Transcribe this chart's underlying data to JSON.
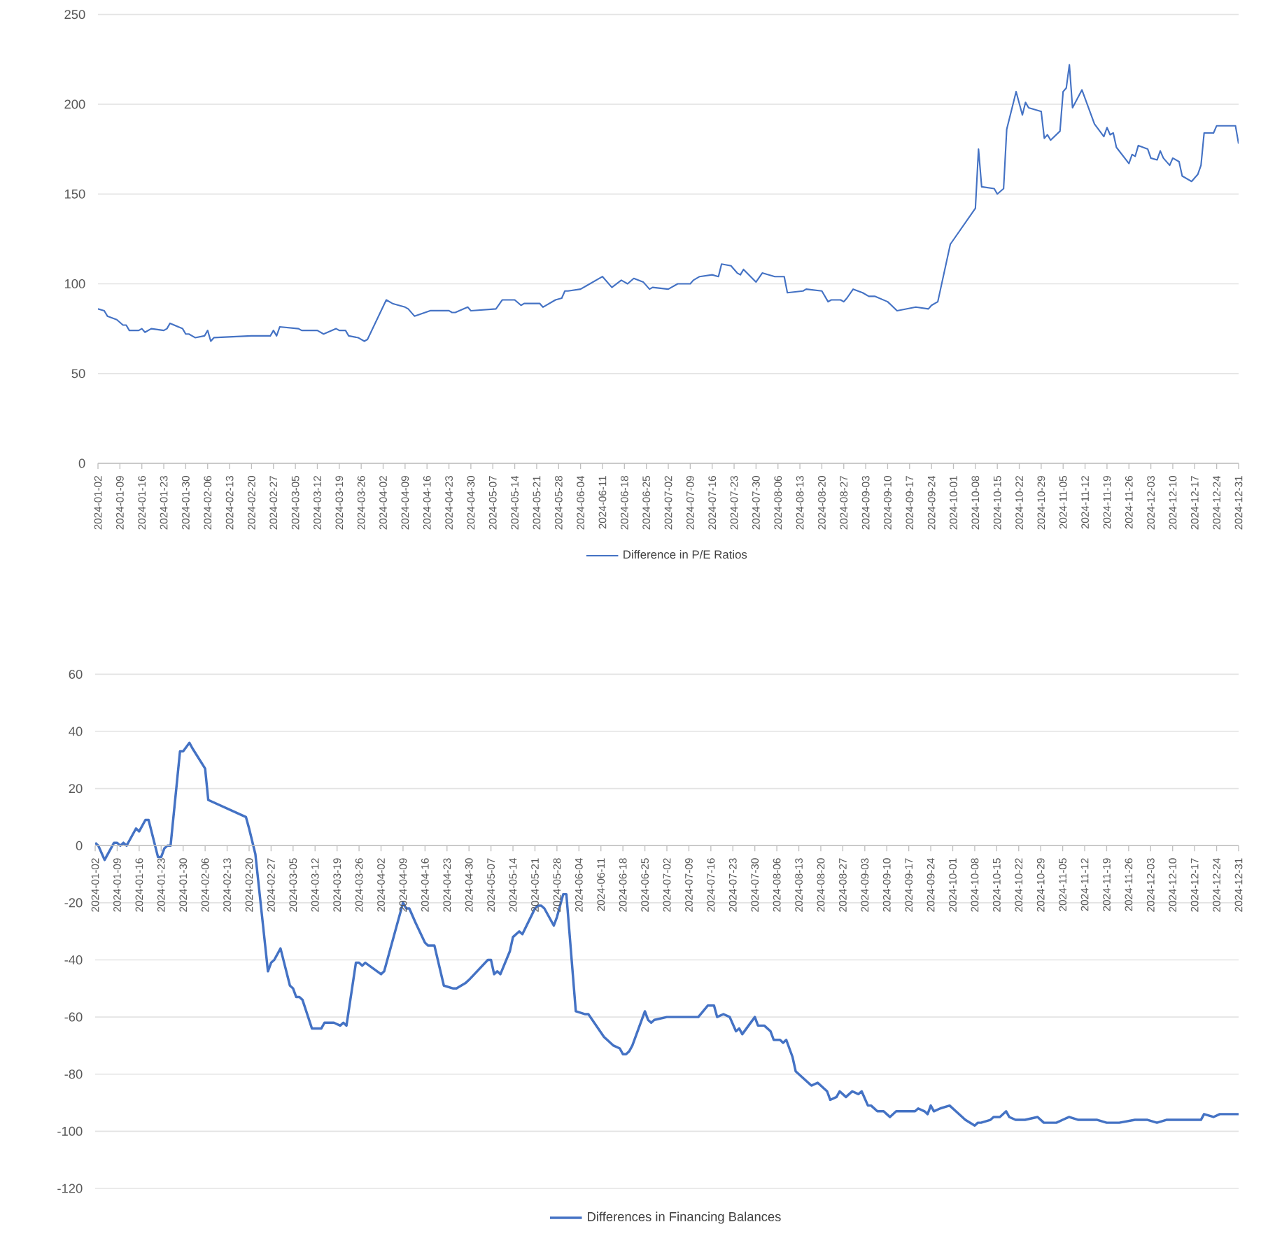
{
  "chart_data": [
    {
      "type": "line",
      "xlim": [
        "2024-01-02",
        "2024-12-31"
      ],
      "ylim": [
        0,
        250
      ],
      "yticks": [
        0,
        50,
        100,
        150,
        200,
        250
      ],
      "grid": "y",
      "legend": "bottom",
      "xticks": [
        "2024-01-02",
        "2024-01-09",
        "2024-01-16",
        "2024-01-23",
        "2024-01-30",
        "2024-02-06",
        "2024-02-13",
        "2024-02-20",
        "2024-02-27",
        "2024-03-05",
        "2024-03-12",
        "2024-03-19",
        "2024-03-26",
        "2024-04-02",
        "2024-04-09",
        "2024-04-16",
        "2024-04-23",
        "2024-04-30",
        "2024-05-07",
        "2024-05-14",
        "2024-05-21",
        "2024-05-28",
        "2024-06-04",
        "2024-06-11",
        "2024-06-18",
        "2024-06-25",
        "2024-07-02",
        "2024-07-09",
        "2024-07-16",
        "2024-07-23",
        "2024-07-30",
        "2024-08-06",
        "2024-08-13",
        "2024-08-20",
        "2024-08-27",
        "2024-09-03",
        "2024-09-10",
        "2024-09-17",
        "2024-09-24",
        "2024-10-01",
        "2024-10-08",
        "2024-10-15",
        "2024-10-22",
        "2024-10-29",
        "2024-11-05",
        "2024-11-12",
        "2024-11-19",
        "2024-11-26",
        "2024-12-03",
        "2024-12-10",
        "2024-12-17",
        "2024-12-24",
        "2024-12-31"
      ],
      "x": [
        "2024-01-02",
        "2024-01-04",
        "2024-01-05",
        "2024-01-08",
        "2024-01-10",
        "2024-01-11",
        "2024-01-12",
        "2024-01-15",
        "2024-01-16",
        "2024-01-17",
        "2024-01-19",
        "2024-01-23",
        "2024-01-24",
        "2024-01-25",
        "2024-01-29",
        "2024-01-30",
        "2024-01-31",
        "2024-02-02",
        "2024-02-05",
        "2024-02-06",
        "2024-02-07",
        "2024-02-08",
        "2024-02-20",
        "2024-02-26",
        "2024-02-27",
        "2024-02-28",
        "2024-02-29",
        "2024-03-06",
        "2024-03-07",
        "2024-03-12",
        "2024-03-14",
        "2024-03-18",
        "2024-03-19",
        "2024-03-21",
        "2024-03-22",
        "2024-03-25",
        "2024-03-27",
        "2024-03-28",
        "2024-04-03",
        "2024-04-05",
        "2024-04-09",
        "2024-04-10",
        "2024-04-12",
        "2024-04-17",
        "2024-04-18",
        "2024-04-23",
        "2024-04-24",
        "2024-04-25",
        "2024-04-29",
        "2024-04-30",
        "2024-05-08",
        "2024-05-10",
        "2024-05-14",
        "2024-05-16",
        "2024-05-17",
        "2024-05-22",
        "2024-05-23",
        "2024-05-27",
        "2024-05-29",
        "2024-05-30",
        "2024-05-31",
        "2024-06-04",
        "2024-06-06",
        "2024-06-11",
        "2024-06-14",
        "2024-06-17",
        "2024-06-18",
        "2024-06-19",
        "2024-06-21",
        "2024-06-24",
        "2024-06-26",
        "2024-06-27",
        "2024-07-02",
        "2024-07-05",
        "2024-07-09",
        "2024-07-10",
        "2024-07-12",
        "2024-07-16",
        "2024-07-18",
        "2024-07-19",
        "2024-07-22",
        "2024-07-24",
        "2024-07-25",
        "2024-07-26",
        "2024-07-30",
        "2024-08-01",
        "2024-08-05",
        "2024-08-08",
        "2024-08-09",
        "2024-08-14",
        "2024-08-15",
        "2024-08-20",
        "2024-08-22",
        "2024-08-23",
        "2024-08-26",
        "2024-08-27",
        "2024-08-28",
        "2024-08-30",
        "2024-09-02",
        "2024-09-04",
        "2024-09-06",
        "2024-09-10",
        "2024-09-13",
        "2024-09-19",
        "2024-09-23",
        "2024-09-24",
        "2024-09-26",
        "2024-09-30",
        "2024-10-08",
        "2024-10-09",
        "2024-10-10",
        "2024-10-14",
        "2024-10-15",
        "2024-10-17",
        "2024-10-18",
        "2024-10-21",
        "2024-10-23",
        "2024-10-24",
        "2024-10-25",
        "2024-10-29",
        "2024-10-30",
        "2024-10-31",
        "2024-11-01",
        "2024-11-04",
        "2024-11-05",
        "2024-11-06",
        "2024-11-07",
        "2024-11-08",
        "2024-11-11",
        "2024-11-15",
        "2024-11-18",
        "2024-11-19",
        "2024-11-20",
        "2024-11-21",
        "2024-11-22",
        "2024-11-26",
        "2024-11-27",
        "2024-11-28",
        "2024-11-29",
        "2024-12-02",
        "2024-12-03",
        "2024-12-05",
        "2024-12-06",
        "2024-12-07",
        "2024-12-09",
        "2024-12-10",
        "2024-12-12",
        "2024-12-13",
        "2024-12-16",
        "2024-12-18",
        "2024-12-19",
        "2024-12-20",
        "2024-12-23",
        "2024-12-24",
        "2024-12-30",
        "2024-12-31"
      ],
      "series": [
        {
          "name": "Difference in P/E Ratios",
          "color": "#4472c4",
          "values": [
            86,
            85,
            82,
            80,
            77,
            77,
            74,
            74,
            75,
            73,
            75,
            74,
            75,
            78,
            75,
            72,
            72,
            70,
            71,
            74,
            68,
            70,
            71,
            71,
            74,
            71,
            76,
            75,
            74,
            74,
            72,
            75,
            74,
            74,
            71,
            70,
            68,
            69,
            91,
            89,
            87,
            86,
            82,
            85,
            85,
            85,
            84,
            84,
            87,
            85,
            86,
            91,
            91,
            88,
            89,
            89,
            87,
            91,
            92,
            96,
            96,
            97,
            99,
            104,
            98,
            102,
            101,
            100,
            103,
            101,
            97,
            98,
            97,
            100,
            100,
            102,
            104,
            105,
            104,
            111,
            110,
            106,
            105,
            108,
            101,
            106,
            104,
            104,
            95,
            96,
            97,
            96,
            90,
            91,
            91,
            90,
            92,
            97,
            95,
            93,
            93,
            90,
            85,
            87,
            86,
            88,
            90,
            122,
            142,
            175,
            154,
            153,
            150,
            153,
            186,
            207,
            194,
            201,
            198,
            196,
            181,
            183,
            180,
            185,
            207,
            209,
            222,
            198,
            208,
            189,
            182,
            187,
            183,
            184,
            176,
            167,
            172,
            171,
            177,
            175,
            170,
            169,
            174,
            170,
            166,
            170,
            168,
            160,
            157,
            161,
            166,
            184,
            184,
            188,
            188,
            178
          ]
        }
      ]
    },
    {
      "type": "line",
      "xlim": [
        "2024-01-02",
        "2024-12-31"
      ],
      "ylim": [
        -120,
        60
      ],
      "yticks": [
        -120,
        -100,
        -80,
        -60,
        -40,
        -20,
        0,
        20,
        40,
        60
      ],
      "grid": "y",
      "legend": "bottom",
      "xticks": [
        "2024-01-02",
        "2024-01-09",
        "2024-01-16",
        "2024-01-23",
        "2024-01-30",
        "2024-02-06",
        "2024-02-13",
        "2024-02-20",
        "2024-02-27",
        "2024-03-05",
        "2024-03-12",
        "2024-03-19",
        "2024-03-26",
        "2024-04-02",
        "2024-04-09",
        "2024-04-16",
        "2024-04-23",
        "2024-04-30",
        "2024-05-07",
        "2024-05-14",
        "2024-05-21",
        "2024-05-28",
        "2024-06-04",
        "2024-06-11",
        "2024-06-18",
        "2024-06-25",
        "2024-07-02",
        "2024-07-09",
        "2024-07-16",
        "2024-07-23",
        "2024-07-30",
        "2024-08-06",
        "2024-08-13",
        "2024-08-20",
        "2024-08-27",
        "2024-09-03",
        "2024-09-10",
        "2024-09-17",
        "2024-09-24",
        "2024-10-01",
        "2024-10-08",
        "2024-10-15",
        "2024-10-22",
        "2024-10-29",
        "2024-11-05",
        "2024-11-12",
        "2024-11-19",
        "2024-11-26",
        "2024-12-03",
        "2024-12-10",
        "2024-12-17",
        "2024-12-24",
        "2024-12-31"
      ],
      "x": [
        "2024-01-02",
        "2024-01-03",
        "2024-01-05",
        "2024-01-08",
        "2024-01-09",
        "2024-01-10",
        "2024-01-11",
        "2024-01-12",
        "2024-01-15",
        "2024-01-16",
        "2024-01-18",
        "2024-01-19",
        "2024-01-22",
        "2024-01-23",
        "2024-01-24",
        "2024-01-25",
        "2024-01-26",
        "2024-01-29",
        "2024-01-30",
        "2024-02-01",
        "2024-02-02",
        "2024-02-06",
        "2024-02-07",
        "2024-02-19",
        "2024-02-20",
        "2024-02-22",
        "2024-02-26",
        "2024-02-27",
        "2024-02-28",
        "2024-03-01",
        "2024-03-04",
        "2024-03-05",
        "2024-03-06",
        "2024-03-07",
        "2024-03-08",
        "2024-03-11",
        "2024-03-12",
        "2024-03-14",
        "2024-03-15",
        "2024-03-18",
        "2024-03-20",
        "2024-03-21",
        "2024-03-22",
        "2024-03-25",
        "2024-03-26",
        "2024-03-27",
        "2024-03-28",
        "2024-04-02",
        "2024-04-03",
        "2024-04-06",
        "2024-04-09",
        "2024-04-10",
        "2024-04-11",
        "2024-04-13",
        "2024-04-16",
        "2024-04-17",
        "2024-04-19",
        "2024-04-22",
        "2024-04-25",
        "2024-04-26",
        "2024-04-29",
        "2024-04-30",
        "2024-05-06",
        "2024-05-07",
        "2024-05-08",
        "2024-05-09",
        "2024-05-10",
        "2024-05-13",
        "2024-05-14",
        "2024-05-16",
        "2024-05-17",
        "2024-05-21",
        "2024-05-22",
        "2024-05-23",
        "2024-05-24",
        "2024-05-27",
        "2024-05-28",
        "2024-05-30",
        "2024-05-31",
        "2024-06-03",
        "2024-06-06",
        "2024-06-07",
        "2024-06-12",
        "2024-06-13",
        "2024-06-15",
        "2024-06-17",
        "2024-06-18",
        "2024-06-19",
        "2024-06-20",
        "2024-06-21",
        "2024-06-25",
        "2024-06-26",
        "2024-06-27",
        "2024-06-28",
        "2024-07-02",
        "2024-07-04",
        "2024-07-05",
        "2024-07-09",
        "2024-07-11",
        "2024-07-12",
        "2024-07-15",
        "2024-07-17",
        "2024-07-18",
        "2024-07-20",
        "2024-07-22",
        "2024-07-24",
        "2024-07-25",
        "2024-07-26",
        "2024-07-30",
        "2024-07-31",
        "2024-08-02",
        "2024-08-04",
        "2024-08-05",
        "2024-08-07",
        "2024-08-08",
        "2024-08-09",
        "2024-08-11",
        "2024-08-12",
        "2024-08-13",
        "2024-08-16",
        "2024-08-17",
        "2024-08-19",
        "2024-08-22",
        "2024-08-23",
        "2024-08-25",
        "2024-08-26",
        "2024-08-28",
        "2024-08-30",
        "2024-09-01",
        "2024-09-02",
        "2024-09-04",
        "2024-09-05",
        "2024-09-07",
        "2024-09-09",
        "2024-09-10",
        "2024-09-11",
        "2024-09-13",
        "2024-09-19",
        "2024-09-20",
        "2024-09-22",
        "2024-09-23",
        "2024-09-24",
        "2024-09-25",
        "2024-09-27",
        "2024-09-30",
        "2024-10-02",
        "2024-10-05",
        "2024-10-08",
        "2024-10-09",
        "2024-10-10",
        "2024-10-13",
        "2024-10-14",
        "2024-10-16",
        "2024-10-18",
        "2024-10-19",
        "2024-10-21",
        "2024-10-23",
        "2024-10-24",
        "2024-10-28",
        "2024-10-30",
        "2024-11-03",
        "2024-11-05",
        "2024-11-07",
        "2024-11-10",
        "2024-11-12",
        "2024-11-15",
        "2024-11-16",
        "2024-11-19",
        "2024-11-23",
        "2024-11-28",
        "2024-12-02",
        "2024-12-05",
        "2024-12-08",
        "2024-12-12",
        "2024-12-17",
        "2024-12-19",
        "2024-12-20",
        "2024-12-23",
        "2024-12-25",
        "2024-12-28",
        "2024-12-31"
      ],
      "series": [
        {
          "name": "Differences in Financing Balances",
          "color": "#4472c4",
          "values": [
            1,
            0,
            -5,
            1,
            1,
            0,
            1,
            0,
            6,
            5,
            9,
            9,
            -4,
            -4,
            -1,
            0,
            0,
            33,
            33,
            36,
            34,
            27,
            16,
            10,
            6,
            -3,
            -44,
            -41,
            -40,
            -36,
            -49,
            -50,
            -53,
            -53,
            -54,
            -64,
            -64,
            -64,
            -62,
            -62,
            -63,
            -62,
            -63,
            -41,
            -41,
            -42,
            -41,
            -45,
            -44,
            -32,
            -20,
            -22,
            -22,
            -27,
            -34,
            -35,
            -35,
            -49,
            -50,
            -50,
            -48,
            -47,
            -40,
            -40,
            -45,
            -44,
            -45,
            -37,
            -32,
            -30,
            -31,
            -22,
            -21,
            -21,
            -22,
            -28,
            -25,
            -17,
            -17,
            -58,
            -59,
            -59,
            -67,
            -68,
            -70,
            -71,
            -73,
            -73,
            -72,
            -70,
            -58,
            -61,
            -62,
            -61,
            -60,
            -60,
            -60,
            -60,
            -60,
            -60,
            -56,
            -56,
            -60,
            -59,
            -60,
            -65,
            -64,
            -66,
            -60,
            -63,
            -63,
            -65,
            -68,
            -68,
            -69,
            -68,
            -74,
            -79,
            -80,
            -83,
            -84,
            -83,
            -86,
            -89,
            -88,
            -86,
            -88,
            -86,
            -87,
            -86,
            -91,
            -91,
            -93,
            -93,
            -94,
            -95,
            -93,
            -93,
            -92,
            -93,
            -94,
            -91,
            -93,
            -92,
            -91,
            -93,
            -96,
            -98,
            -97,
            -97,
            -96,
            -95,
            -95,
            -93,
            -95,
            -96,
            -96,
            -96,
            -95,
            -97,
            -97,
            -96,
            -95,
            -96,
            -96,
            -96,
            -96,
            -97,
            -97,
            -96,
            -96,
            -97,
            -96,
            -96,
            -96,
            -96,
            -94,
            -95,
            -94,
            -94,
            -94
          ]
        }
      ]
    }
  ]
}
